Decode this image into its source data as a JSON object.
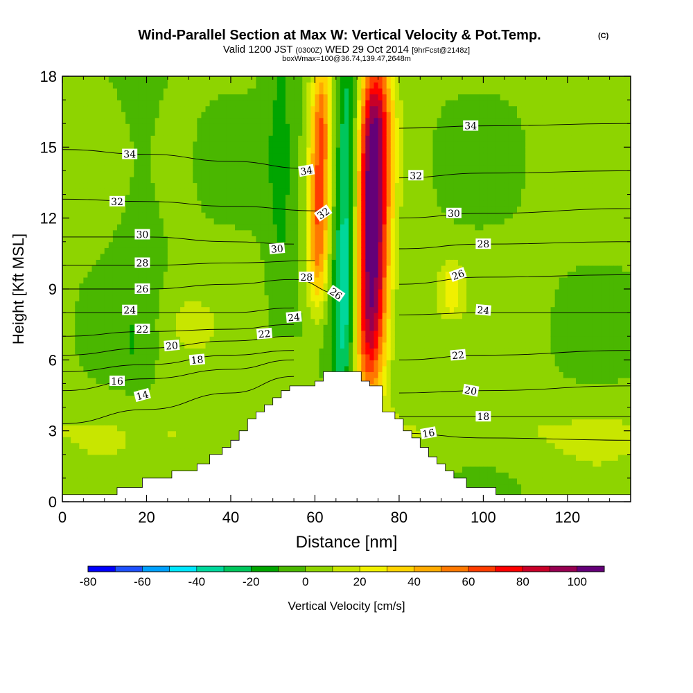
{
  "chart_data": {
    "type": "heatmap",
    "title": "Wind-Parallel Section at Max W: Vertical Velocity & Pot.Temp.",
    "title_suffix": "(C)",
    "subtitle": {
      "valid_prefix": "Valid 1200 JST",
      "utc": "(0300Z)",
      "date": "WED 29 Oct 2014",
      "forecast": "[9hrFcst@2148z]"
    },
    "subtitle2": "boxWmax=100@36.74,139.47,2648m",
    "xlabel": "Distance [nm]",
    "ylabel": "Height [Kft MSL]",
    "xlim": [
      0,
      135
    ],
    "ylim": [
      0,
      18
    ],
    "xticks": [
      0,
      20,
      40,
      60,
      80,
      100,
      120
    ],
    "yticks": [
      0,
      3,
      6,
      9,
      12,
      15,
      18
    ],
    "colorbar": {
      "label": "Vertical Velocity [cm/s]",
      "ticks": [
        -80,
        -60,
        -40,
        -20,
        0,
        20,
        40,
        60,
        80,
        100
      ],
      "levels": [
        -80,
        -70,
        -60,
        -50,
        -40,
        -30,
        -20,
        -10,
        0,
        10,
        20,
        30,
        40,
        50,
        60,
        70,
        80,
        90,
        100,
        110
      ],
      "colors": [
        "#0000ff",
        "#1e50ff",
        "#00a0ff",
        "#00e6ff",
        "#00d79b",
        "#00c65c",
        "#00a500",
        "#4ab700",
        "#8ed400",
        "#c8e600",
        "#f0f000",
        "#ffd200",
        "#ffaa00",
        "#ff7800",
        "#ff3c00",
        "#ff0000",
        "#c80028",
        "#960050",
        "#640078"
      ]
    },
    "terrain_profile": {
      "x": [
        0,
        13,
        13,
        19,
        19,
        26,
        26,
        32,
        32,
        35,
        35,
        38,
        38,
        40,
        40,
        42,
        42,
        44,
        44,
        46,
        46,
        48,
        48,
        50,
        50,
        52,
        52,
        54,
        54,
        55,
        55,
        60,
        60,
        62,
        62,
        71,
        71,
        73,
        73,
        76,
        76,
        79,
        79,
        81,
        81,
        83,
        83,
        85,
        85,
        87,
        87,
        89,
        89,
        91,
        91,
        93,
        93,
        96,
        96,
        103,
        103,
        116,
        116,
        135,
        135
      ],
      "y": [
        0.3,
        0.3,
        0.6,
        0.6,
        1.0,
        1.0,
        1.3,
        1.3,
        1.6,
        1.6,
        2.0,
        2.0,
        2.3,
        2.3,
        2.6,
        2.6,
        3.0,
        3.0,
        3.5,
        3.5,
        3.8,
        3.8,
        4.1,
        4.1,
        4.4,
        4.4,
        4.7,
        4.7,
        4.9,
        4.9,
        4.9,
        4.9,
        5.1,
        5.1,
        5.5,
        5.5,
        5.1,
        5.1,
        4.9,
        4.9,
        3.8,
        3.8,
        3.5,
        3.5,
        3.0,
        3.0,
        2.7,
        2.7,
        2.3,
        2.3,
        1.9,
        1.9,
        1.6,
        1.6,
        1.3,
        1.3,
        1.0,
        1.0,
        0.6,
        0.6,
        0.3,
        0.3,
        0.3,
        0.3,
        0.3
      ]
    },
    "isentropes": [
      {
        "theta": 14,
        "points": [
          [
            0,
            3.3
          ],
          [
            20,
            3.9
          ],
          [
            40,
            4.6
          ],
          [
            55,
            5.3
          ]
        ]
      },
      {
        "theta": 16,
        "points": [
          [
            0,
            4.7
          ],
          [
            20,
            5.2
          ],
          [
            40,
            5.6
          ],
          [
            55,
            6.0
          ]
        ]
      },
      {
        "theta": 16,
        "points": [
          [
            80,
            2.9
          ],
          [
            100,
            2.7
          ],
          [
            135,
            2.6
          ]
        ]
      },
      {
        "theta": 18,
        "points": [
          [
            0,
            5.5
          ],
          [
            20,
            5.8
          ],
          [
            40,
            6.2
          ],
          [
            55,
            6.4
          ]
        ]
      },
      {
        "theta": 18,
        "points": [
          [
            80,
            3.6
          ],
          [
            100,
            3.6
          ],
          [
            135,
            3.6
          ]
        ]
      },
      {
        "theta": 20,
        "points": [
          [
            0,
            6.2
          ],
          [
            20,
            6.5
          ],
          [
            40,
            6.8
          ],
          [
            55,
            7.0
          ]
        ]
      },
      {
        "theta": 20,
        "points": [
          [
            80,
            4.6
          ],
          [
            100,
            4.7
          ],
          [
            135,
            4.9
          ]
        ]
      },
      {
        "theta": 22,
        "points": [
          [
            0,
            7.0
          ],
          [
            20,
            7.2
          ],
          [
            40,
            7.3
          ],
          [
            55,
            7.5
          ]
        ]
      },
      {
        "theta": 22,
        "points": [
          [
            80,
            6.0
          ],
          [
            100,
            6.2
          ],
          [
            135,
            6.4
          ]
        ]
      },
      {
        "theta": 24,
        "points": [
          [
            0,
            8.0
          ],
          [
            20,
            8.0
          ],
          [
            40,
            8.0
          ],
          [
            55,
            8.2
          ]
        ]
      },
      {
        "theta": 24,
        "points": [
          [
            80,
            7.9
          ],
          [
            100,
            8.0
          ],
          [
            135,
            8.0
          ]
        ]
      },
      {
        "theta": 26,
        "points": [
          [
            0,
            9.0
          ],
          [
            20,
            9.0
          ],
          [
            40,
            9.2
          ],
          [
            55,
            9.4
          ],
          [
            66,
            8.8
          ]
        ]
      },
      {
        "theta": 26,
        "points": [
          [
            80,
            9.2
          ],
          [
            100,
            9.5
          ],
          [
            135,
            9.6
          ]
        ]
      },
      {
        "theta": 28,
        "points": [
          [
            0,
            10.0
          ],
          [
            20,
            10.0
          ],
          [
            40,
            10.1
          ],
          [
            60,
            10.2
          ]
        ]
      },
      {
        "theta": 28,
        "points": [
          [
            80,
            10.7
          ],
          [
            100,
            10.9
          ],
          [
            135,
            11.0
          ]
        ]
      },
      {
        "theta": 30,
        "points": [
          [
            0,
            11.2
          ],
          [
            20,
            11.2
          ],
          [
            40,
            11.0
          ],
          [
            55,
            10.9
          ]
        ]
      },
      {
        "theta": 30,
        "points": [
          [
            80,
            12.0
          ],
          [
            100,
            12.2
          ],
          [
            135,
            12.4
          ]
        ]
      },
      {
        "theta": 32,
        "points": [
          [
            0,
            12.8
          ],
          [
            20,
            12.7
          ],
          [
            40,
            12.5
          ],
          [
            62,
            12.3
          ]
        ]
      },
      {
        "theta": 32,
        "points": [
          [
            80,
            13.7
          ],
          [
            100,
            13.9
          ],
          [
            135,
            14.0
          ]
        ]
      },
      {
        "theta": 34,
        "points": [
          [
            0,
            14.9
          ],
          [
            20,
            14.7
          ],
          [
            40,
            14.4
          ],
          [
            58,
            14.1
          ]
        ]
      },
      {
        "theta": 34,
        "points": [
          [
            80,
            15.8
          ],
          [
            100,
            15.9
          ],
          [
            135,
            16.0
          ]
        ]
      }
    ],
    "contour_labels": [
      {
        "text": "34",
        "x": 16,
        "y": 14.7
      },
      {
        "text": "34",
        "x": 58,
        "y": 14.0,
        "angle": -10
      },
      {
        "text": "34",
        "x": 97,
        "y": 15.9
      },
      {
        "text": "32",
        "x": 13,
        "y": 12.7
      },
      {
        "text": "32",
        "x": 62,
        "y": 12.2,
        "angle": -35
      },
      {
        "text": "32",
        "x": 84,
        "y": 13.8
      },
      {
        "text": "30",
        "x": 19,
        "y": 11.3
      },
      {
        "text": "30",
        "x": 51,
        "y": 10.7,
        "angle": -5
      },
      {
        "text": "30",
        "x": 93,
        "y": 12.2
      },
      {
        "text": "28",
        "x": 19,
        "y": 10.1
      },
      {
        "text": "28",
        "x": 58,
        "y": 9.5
      },
      {
        "text": "28",
        "x": 100,
        "y": 10.9
      },
      {
        "text": "26",
        "x": 19,
        "y": 9.0
      },
      {
        "text": "26",
        "x": 65,
        "y": 8.8,
        "angle": 35
      },
      {
        "text": "26",
        "x": 94,
        "y": 9.6,
        "angle": -20
      },
      {
        "text": "24",
        "x": 16,
        "y": 8.1
      },
      {
        "text": "24",
        "x": 55,
        "y": 7.8,
        "angle": -5
      },
      {
        "text": "24",
        "x": 100,
        "y": 8.1,
        "angle": 5
      },
      {
        "text": "22",
        "x": 19,
        "y": 7.3
      },
      {
        "text": "22",
        "x": 48,
        "y": 7.1,
        "angle": -5
      },
      {
        "text": "22",
        "x": 94,
        "y": 6.2,
        "angle": -5
      },
      {
        "text": "20",
        "x": 26,
        "y": 6.6,
        "angle": -5
      },
      {
        "text": "20",
        "x": 97,
        "y": 4.7,
        "angle": 10
      },
      {
        "text": "18",
        "x": 32,
        "y": 6.0,
        "angle": -5
      },
      {
        "text": "18",
        "x": 100,
        "y": 3.6
      },
      {
        "text": "16",
        "x": 13,
        "y": 5.1
      },
      {
        "text": "16",
        "x": 87,
        "y": 2.9,
        "angle": -10
      },
      {
        "text": "14",
        "x": 19,
        "y": 4.5,
        "angle": -15
      }
    ],
    "velocity_features": [
      {
        "desc": "updraft core",
        "x_center": 73,
        "x_range": [
          68,
          76
        ],
        "y_range": [
          5.5,
          18
        ],
        "max": 110
      },
      {
        "desc": "downdraft core",
        "x_center": 67,
        "x_range": [
          64,
          70
        ],
        "y_range": [
          5.5,
          18
        ],
        "min": -45
      },
      {
        "desc": "upstream updraft band",
        "x_center": 61,
        "x_range": [
          58,
          63
        ],
        "y_range": [
          9,
          18
        ],
        "max": 60
      },
      {
        "desc": "weak ascent",
        "x_center": 92,
        "x_range": [
          89,
          95
        ],
        "y_range": [
          8,
          10
        ],
        "max": 20
      }
    ]
  }
}
